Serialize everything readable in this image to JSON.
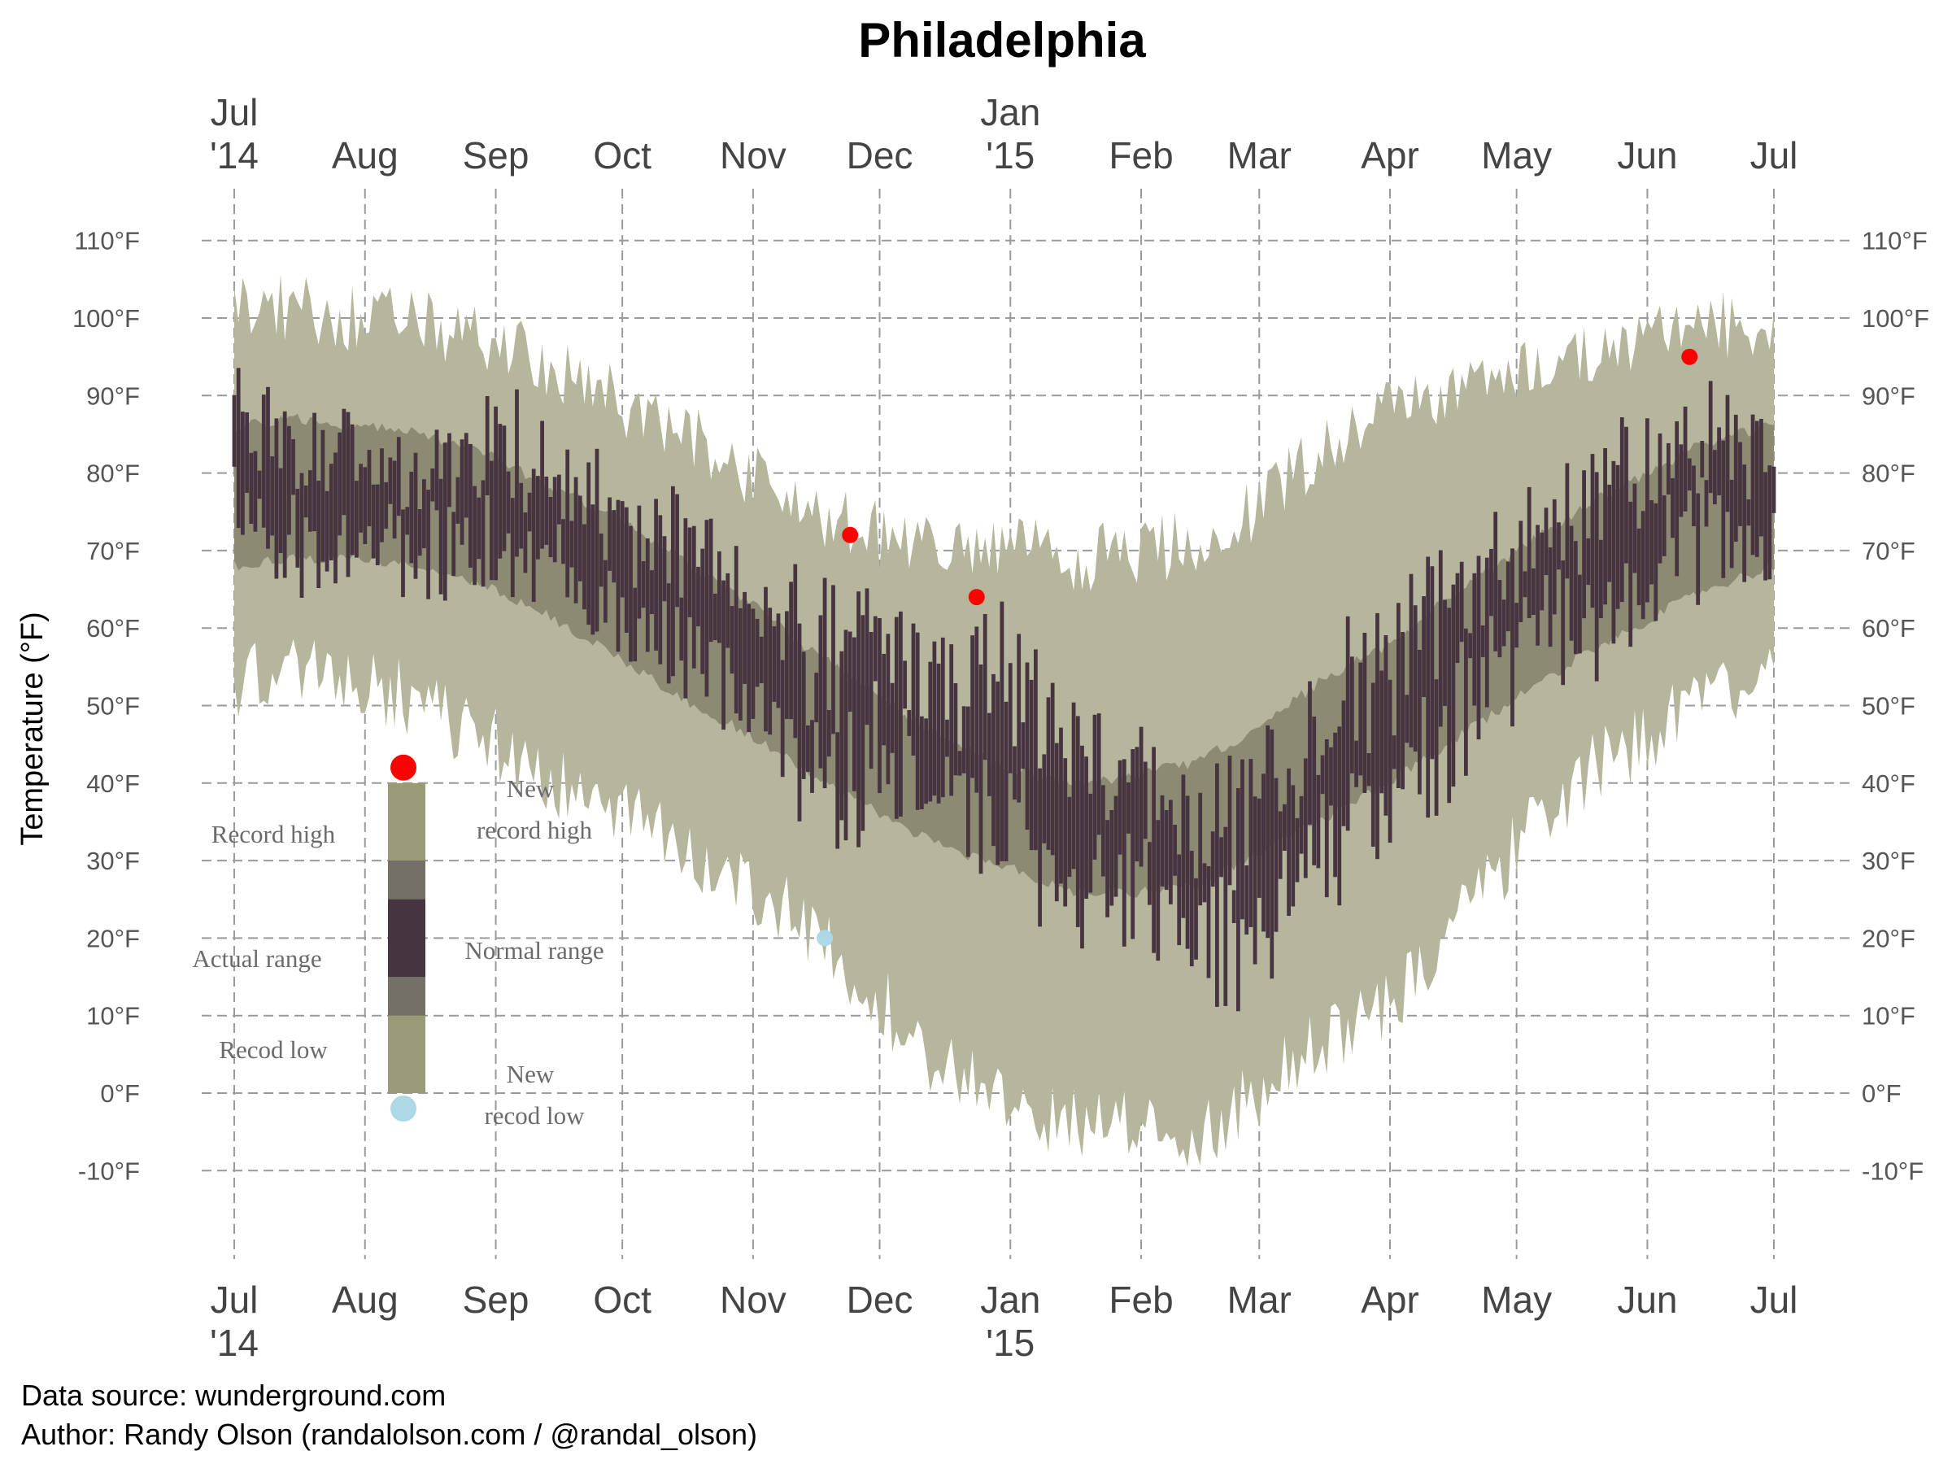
{
  "chart_data": {
    "type": "area",
    "title": "Philadelphia",
    "ylabel": "Temperature (°F)",
    "xlabel": "",
    "x_range": [
      "2014-07-01",
      "2015-07-01"
    ],
    "ylim": [
      -20,
      120
    ],
    "y_ticks": [
      -10,
      0,
      10,
      20,
      30,
      40,
      50,
      60,
      70,
      80,
      90,
      100,
      110
    ],
    "y_tick_labels": [
      "-10°F",
      "0°F",
      "10°F",
      "20°F",
      "30°F",
      "40°F",
      "50°F",
      "60°F",
      "70°F",
      "80°F",
      "90°F",
      "100°F",
      "110°F"
    ],
    "x_ticks": [
      {
        "date": "2014-07-01",
        "label": "Jul",
        "year": "'14"
      },
      {
        "date": "2014-08-01",
        "label": "Aug",
        "year": ""
      },
      {
        "date": "2014-09-01",
        "label": "Sep",
        "year": ""
      },
      {
        "date": "2014-10-01",
        "label": "Oct",
        "year": ""
      },
      {
        "date": "2014-11-01",
        "label": "Nov",
        "year": ""
      },
      {
        "date": "2014-12-01",
        "label": "Dec",
        "year": ""
      },
      {
        "date": "2015-01-01",
        "label": "Jan",
        "year": "'15"
      },
      {
        "date": "2015-02-01",
        "label": "Feb",
        "year": ""
      },
      {
        "date": "2015-03-01",
        "label": "Mar",
        "year": ""
      },
      {
        "date": "2015-04-01",
        "label": "Apr",
        "year": ""
      },
      {
        "date": "2015-05-01",
        "label": "May",
        "year": ""
      },
      {
        "date": "2015-06-01",
        "label": "Jun",
        "year": ""
      },
      {
        "date": "2015-07-01",
        "label": "Jul",
        "year": ""
      }
    ],
    "grid": true,
    "colors": {
      "record_range": "#b6b69d",
      "normal_range": "#8c8a72",
      "actual_range": "#463540",
      "new_record_high": "#ff0000",
      "new_record_low": "#add8e6"
    },
    "series": [
      {
        "name": "Record high",
        "x": [
          "2014-07-01",
          "2014-07-15",
          "2014-08-01",
          "2014-08-15",
          "2014-09-01",
          "2014-09-15",
          "2014-10-01",
          "2014-10-15",
          "2014-11-01",
          "2014-11-15",
          "2014-12-01",
          "2014-12-15",
          "2015-01-01",
          "2015-01-15",
          "2015-02-01",
          "2015-02-15",
          "2015-03-01",
          "2015-03-15",
          "2015-04-01",
          "2015-04-15",
          "2015-05-01",
          "2015-05-15",
          "2015-06-01",
          "2015-06-15",
          "2015-07-01"
        ],
        "y": [
          102,
          101,
          100,
          99,
          97,
          93,
          89,
          85,
          80,
          75,
          72,
          70,
          70,
          69,
          70,
          71,
          76,
          83,
          88,
          91,
          93,
          95,
          97,
          99,
          99
        ]
      },
      {
        "name": "Record low",
        "x": [
          "2014-07-01",
          "2014-07-15",
          "2014-08-01",
          "2014-08-15",
          "2014-09-01",
          "2014-09-15",
          "2014-10-01",
          "2014-10-15",
          "2014-11-01",
          "2014-11-15",
          "2014-12-01",
          "2014-12-15",
          "2015-01-01",
          "2015-01-15",
          "2015-02-01",
          "2015-02-15",
          "2015-03-01",
          "2015-03-15",
          "2015-04-01",
          "2015-04-15",
          "2015-05-01",
          "2015-05-15",
          "2015-06-01",
          "2015-06-15",
          "2015-07-01"
        ],
        "y": [
          53,
          54,
          53,
          50,
          45,
          40,
          36,
          31,
          27,
          20,
          12,
          4,
          -2,
          -4,
          -5,
          -5,
          0,
          6,
          12,
          20,
          32,
          40,
          46,
          51,
          53
        ]
      },
      {
        "name": "Normal range",
        "x": [
          "2014-07-01",
          "2014-07-15",
          "2014-08-01",
          "2014-08-15",
          "2014-09-01",
          "2014-09-15",
          "2014-10-01",
          "2014-10-15",
          "2014-11-01",
          "2014-11-15",
          "2014-12-01",
          "2014-12-15",
          "2015-01-01",
          "2015-01-15",
          "2015-02-01",
          "2015-02-15",
          "2015-03-01",
          "2015-03-15",
          "2015-04-01",
          "2015-04-15",
          "2015-05-01",
          "2015-05-15",
          "2015-06-01",
          "2015-06-15",
          "2015-07-01"
        ],
        "high": [
          86,
          87,
          86,
          85,
          82,
          78,
          74,
          69,
          63,
          57,
          51,
          46,
          42,
          40,
          41,
          43,
          47,
          53,
          58,
          64,
          70,
          75,
          80,
          84,
          86
        ],
        "low": [
          68,
          69,
          69,
          68,
          65,
          61,
          56,
          51,
          46,
          41,
          36,
          32,
          29,
          26,
          26,
          27,
          31,
          35,
          40,
          45,
          51,
          56,
          61,
          65,
          68
        ]
      },
      {
        "name": "Actual range",
        "x": [
          "2014-07-01",
          "2014-07-15",
          "2014-08-01",
          "2014-08-15",
          "2014-09-01",
          "2014-09-15",
          "2014-10-01",
          "2014-10-15",
          "2014-11-01",
          "2014-11-15",
          "2014-12-01",
          "2014-12-15",
          "2015-01-01",
          "2015-01-15",
          "2015-02-01",
          "2015-02-15",
          "2015-03-01",
          "2015-03-15",
          "2015-04-01",
          "2015-04-15",
          "2015-05-01",
          "2015-05-15",
          "2015-06-01",
          "2015-06-15",
          "2015-07-01"
        ],
        "high": [
          93,
          89,
          88,
          86,
          90,
          85,
          80,
          76,
          73,
          65,
          66,
          58,
          62,
          52,
          46,
          44,
          44,
          57,
          63,
          72,
          78,
          83,
          88,
          92,
          85
        ],
        "low": [
          72,
          66,
          66,
          64,
          64,
          62,
          56,
          52,
          44,
          28,
          36,
          32,
          28,
          18,
          20,
          12,
          8,
          24,
          30,
          40,
          48,
          54,
          60,
          66,
          66
        ]
      }
    ],
    "new_records": [
      {
        "type": "high",
        "x": "2014-11-24",
        "y": 72
      },
      {
        "type": "high",
        "x": "2014-12-24",
        "y": 64
      },
      {
        "type": "high",
        "x": "2015-06-11",
        "y": 95
      },
      {
        "type": "low",
        "x": "2014-11-18",
        "y": 20
      }
    ],
    "legend": {
      "placement": "bottom-left",
      "record_high": "Record high",
      "actual_range": "Actual range",
      "record_low": "Recod low",
      "new_record_high_1": "New",
      "new_record_high_2": "record high",
      "normal_range": "Normal range",
      "new_record_low_1": "New",
      "new_record_low_2": "recod low",
      "values": {
        "top": 40,
        "normal_top": 30,
        "actual_top": 25,
        "actual_bottom": 15,
        "normal_bottom": 10,
        "bottom": 0,
        "dot_high": 42,
        "dot_low": -2
      }
    },
    "footer": {
      "line1": "Data source: wunderground.com",
      "line2": "Author: Randy Olson (randalolson.com / @randal_olson)"
    }
  }
}
